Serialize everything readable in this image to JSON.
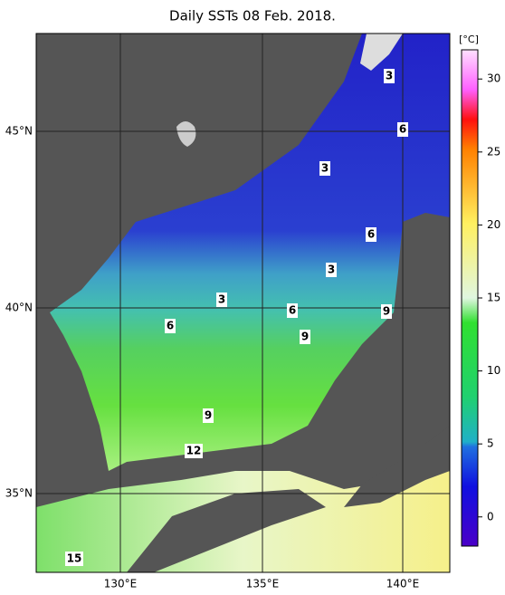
{
  "title": "Daily SSTs 08 Feb. 2018.",
  "longitude_labels": [
    "130°E",
    "135°E",
    "140°E"
  ],
  "latitude_labels": [
    "45°N",
    "40°N",
    "35°N"
  ],
  "colorbar": {
    "unit": "[°C]",
    "lim": [
      -2,
      32
    ],
    "ticks": [
      0,
      5,
      10,
      15,
      20,
      25,
      30
    ]
  },
  "contour_labels": [
    "3",
    "6",
    "3",
    "6",
    "3",
    "3",
    "6",
    "9",
    "6",
    "9",
    "9",
    "12",
    "15"
  ]
}
